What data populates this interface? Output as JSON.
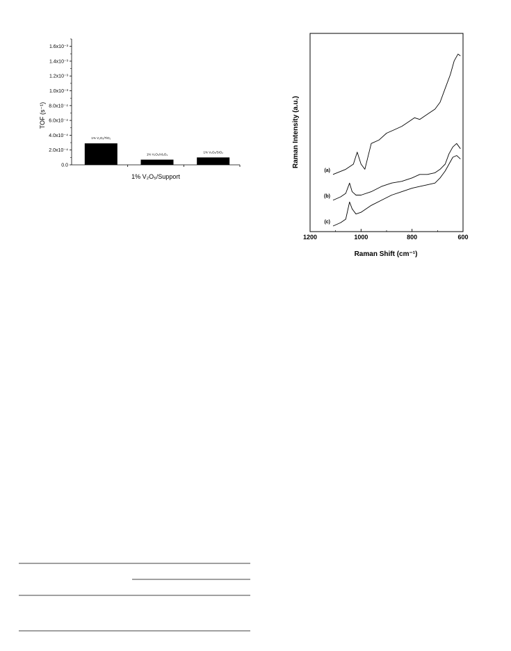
{
  "chart_data": [
    {
      "type": "bar",
      "categories": [
        "1% V₂O₅/TiO₂",
        "1% V₂O₅/Al₂O₃",
        "1% V₂O₅/SiO₂"
      ],
      "values": [
        0.00029,
        7e-05,
        0.0001
      ],
      "ylabel": "TOF (s⁻¹)",
      "xlabel": "1% V₂O₅/Support",
      "ylim": [
        0,
        0.0017
      ],
      "yticks": [
        {
          "value": 0,
          "label": "0.0"
        },
        {
          "value": 0.0002,
          "label": "2.0x10⁻⁴"
        },
        {
          "value": 0.0004,
          "label": "4.0x10⁻⁴"
        },
        {
          "value": 0.0006,
          "label": "6.0x10⁻⁴"
        },
        {
          "value": 0.0008,
          "label": "8.0x10⁻⁴"
        },
        {
          "value": 0.001,
          "label": "1.0x10⁻³"
        },
        {
          "value": 0.0012,
          "label": "1.2x10⁻³"
        },
        {
          "value": 0.0014,
          "label": "1.4x10⁻³"
        },
        {
          "value": 0.0016,
          "label": "1.6x10⁻³"
        }
      ],
      "bar_color": "#000000",
      "grid": false
    },
    {
      "type": "line",
      "xlabel": "Raman Shift (cm⁻¹)",
      "ylabel": "Raman Intensity (a.u.)",
      "xlim": [
        1200,
        600
      ],
      "x_reversed": true,
      "xticks": [
        1200,
        1000,
        800,
        600
      ],
      "grid": false,
      "series": [
        {
          "name": "(a)",
          "x": [
            1110,
            1060,
            1030,
            1015,
            1000,
            985,
            960,
            930,
            900,
            870,
            840,
            810,
            790,
            770,
            740,
            710,
            690,
            670,
            650,
            635,
            620,
            610
          ],
          "y": [
            3.0,
            3.3,
            3.6,
            4.3,
            3.6,
            3.3,
            4.8,
            5.0,
            5.4,
            5.6,
            5.8,
            6.1,
            6.3,
            6.2,
            6.5,
            6.8,
            7.2,
            8.0,
            8.8,
            9.6,
            10.0,
            9.9
          ]
        },
        {
          "name": "(b)",
          "x": [
            1110,
            1080,
            1060,
            1045,
            1035,
            1020,
            1000,
            960,
            920,
            880,
            840,
            800,
            770,
            740,
            710,
            690,
            670,
            655,
            640,
            625,
            610
          ],
          "y": [
            1.5,
            1.7,
            1.9,
            2.5,
            2.0,
            1.8,
            1.8,
            2.0,
            2.3,
            2.5,
            2.6,
            2.8,
            3.0,
            3.0,
            3.1,
            3.3,
            3.6,
            4.2,
            4.6,
            4.8,
            4.5
          ]
        },
        {
          "name": "(c)",
          "x": [
            1110,
            1080,
            1060,
            1045,
            1035,
            1020,
            1000,
            960,
            920,
            880,
            840,
            800,
            770,
            740,
            710,
            690,
            670,
            655,
            640,
            625,
            610
          ],
          "y": [
            0.0,
            0.2,
            0.4,
            1.4,
            1.0,
            0.7,
            0.8,
            1.2,
            1.5,
            1.8,
            2.0,
            2.2,
            2.3,
            2.4,
            2.5,
            2.8,
            3.2,
            3.6,
            4.0,
            4.1,
            3.9
          ]
        }
      ]
    }
  ]
}
